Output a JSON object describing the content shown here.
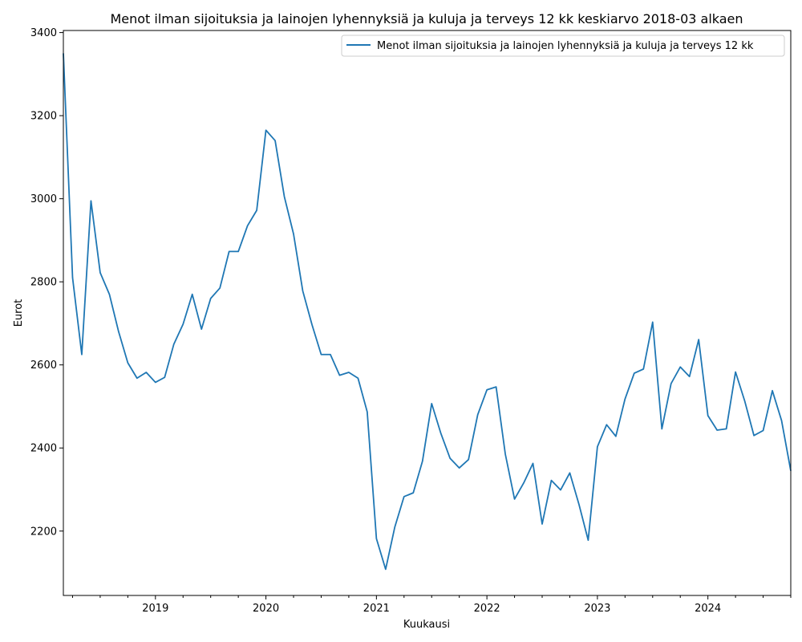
{
  "chart_data": {
    "type": "line",
    "title": "Menot ilman sijoituksia ja lainojen lyhennyksiä ja kuluja ja terveys 12 kk keskiarvo 2018-03 alkaen",
    "xlabel": "Kuukausi",
    "ylabel": "Eurot",
    "xlim": [
      "2018-03",
      "2024-10"
    ],
    "ylim": [
      2045,
      3405
    ],
    "yticks": [
      2200,
      2400,
      2600,
      2800,
      3000,
      3200,
      3400
    ],
    "xticks": [
      "2019",
      "2020",
      "2021",
      "2022",
      "2023",
      "2024"
    ],
    "grid": false,
    "legend_position": "top-right",
    "series": [
      {
        "name": "Menot ilman sijoituksia ja lainojen lyhennyksiä ja kuluja ja terveys 12 kk",
        "color": "#1f77b4",
        "x": [
          "2018-03",
          "2018-04",
          "2018-05",
          "2018-06",
          "2018-07",
          "2018-08",
          "2018-09",
          "2018-10",
          "2018-11",
          "2018-12",
          "2019-01",
          "2019-02",
          "2019-03",
          "2019-04",
          "2019-05",
          "2019-06",
          "2019-07",
          "2019-08",
          "2019-09",
          "2019-10",
          "2019-11",
          "2019-12",
          "2020-01",
          "2020-02",
          "2020-03",
          "2020-04",
          "2020-05",
          "2020-06",
          "2020-07",
          "2020-08",
          "2020-09",
          "2020-10",
          "2020-11",
          "2020-12",
          "2021-01",
          "2021-02",
          "2021-03",
          "2021-04",
          "2021-05",
          "2021-06",
          "2021-07",
          "2021-08",
          "2021-09",
          "2021-10",
          "2021-11",
          "2021-12",
          "2022-01",
          "2022-02",
          "2022-03",
          "2022-04",
          "2022-05",
          "2022-06",
          "2022-07",
          "2022-08",
          "2022-09",
          "2022-10",
          "2022-11",
          "2022-12",
          "2023-01",
          "2023-02",
          "2023-03",
          "2023-04",
          "2023-05",
          "2023-06",
          "2023-07",
          "2023-08",
          "2023-09",
          "2023-10",
          "2023-11",
          "2023-12",
          "2024-01",
          "2024-02",
          "2024-03",
          "2024-04",
          "2024-05",
          "2024-06",
          "2024-07",
          "2024-08",
          "2024-09",
          "2024-10"
        ],
        "values": [
          3350,
          2810,
          2625,
          2995,
          2822,
          2770,
          2680,
          2605,
          2568,
          2582,
          2558,
          2570,
          2650,
          2698,
          2770,
          2686,
          2760,
          2785,
          2873,
          2873,
          2935,
          2972,
          3165,
          3140,
          3005,
          2915,
          2778,
          2697,
          2625,
          2625,
          2575,
          2582,
          2568,
          2487,
          2182,
          2108,
          2210,
          2283,
          2292,
          2368,
          2507,
          2435,
          2375,
          2352,
          2372,
          2480,
          2540,
          2547,
          2385,
          2277,
          2316,
          2363,
          2217,
          2322,
          2299,
          2340,
          2264,
          2178,
          2403,
          2456,
          2428,
          2518,
          2580,
          2590,
          2703,
          2446,
          2555,
          2595,
          2572,
          2661,
          2478,
          2443,
          2446,
          2583,
          2513,
          2430,
          2442,
          2538,
          2466,
          2345
        ]
      }
    ]
  }
}
